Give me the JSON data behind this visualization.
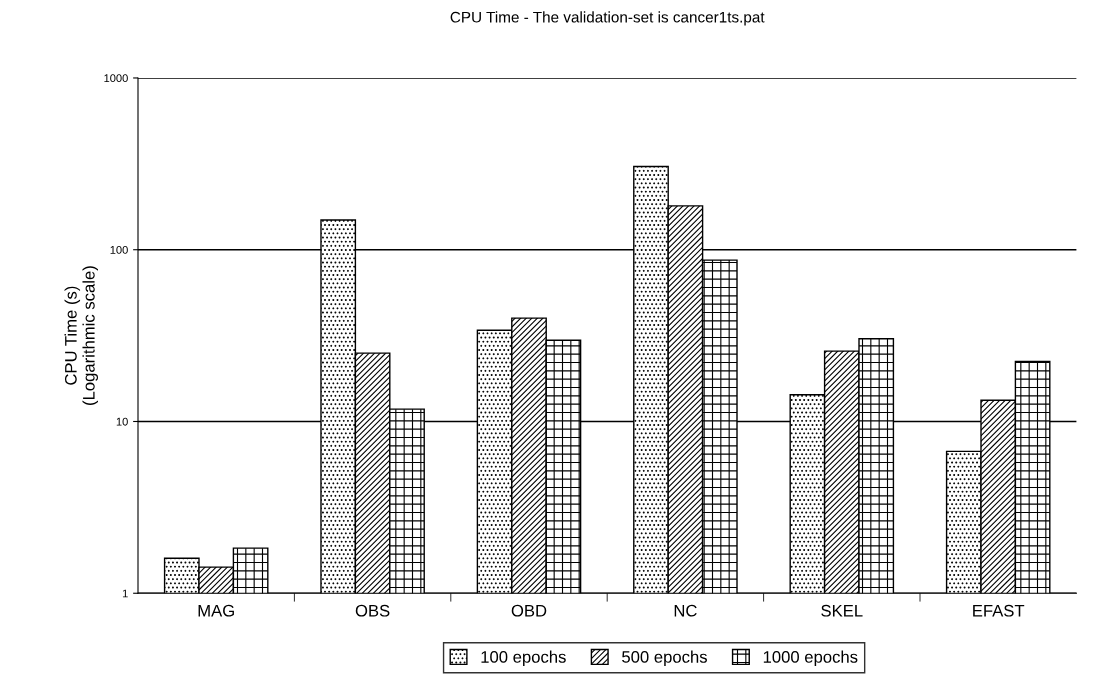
{
  "chart_data": {
    "type": "bar",
    "title": "CPU Time - The validation-set is cancer1ts.pat",
    "ylabel": "CPU Time (s)\n(Logarithmic scale)",
    "categories": [
      "MAG",
      "OBS",
      "OBD",
      "NC",
      "SKEL",
      "EFAST"
    ],
    "series": [
      {
        "name": "100 epochs",
        "color": "#000000",
        "values": [
          1.6,
          149,
          34,
          305,
          14.3,
          6.7
        ]
      },
      {
        "name": "500 epochs",
        "color": "#000000",
        "values": [
          1.42,
          25,
          40,
          180,
          25.7,
          13.3
        ]
      },
      {
        "name": "1000 epochs",
        "color": "#000000",
        "values": [
          1.83,
          11.8,
          29.7,
          87,
          30.3,
          22.4
        ]
      }
    ],
    "log": "y",
    "ylim": [
      1,
      1000
    ],
    "yticks": [
      1,
      10,
      100,
      1000
    ],
    "grid": "y",
    "legend": "bottom"
  }
}
